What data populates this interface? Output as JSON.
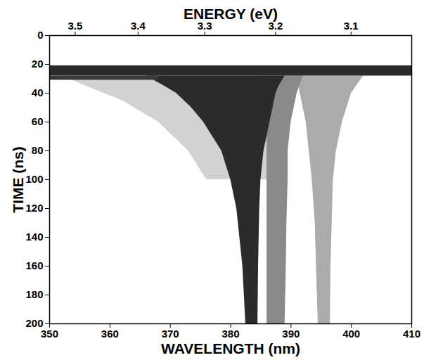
{
  "chart_data": {
    "type": "area",
    "xlabel": "WAVELENGTH (nm)",
    "ylabel": "TIME (ns)",
    "x2label": "ENERGY (eV)",
    "xlim": [
      350,
      410
    ],
    "xticks": [
      350,
      360,
      370,
      380,
      390,
      400,
      410
    ],
    "x2ticks": [
      {
        "value": 354.24,
        "label": "3.5"
      },
      {
        "value": 364.66,
        "label": "3.4"
      },
      {
        "value": 375.71,
        "label": "3.3"
      },
      {
        "value": 387.45,
        "label": "3.2"
      },
      {
        "value": 399.95,
        "label": "3.1"
      }
    ],
    "ylim": [
      0,
      200
    ],
    "yticks": [
      0,
      20,
      40,
      60,
      80,
      100,
      120,
      140,
      160,
      180,
      200
    ],
    "bands": [
      {
        "color": "#d2d2d2",
        "time": [
          28,
          35,
          45,
          60,
          80,
          100
        ],
        "x1": [
          352,
          356,
          362,
          368,
          373,
          376
        ],
        "x2": [
          390,
          390,
          390,
          390,
          388,
          386
        ]
      },
      {
        "color": "#ababab",
        "time": [
          28,
          40,
          60,
          80,
          100,
          130,
          160,
          200
        ],
        "x1": [
          391,
          391.5,
          392.5,
          393,
          393.5,
          394,
          394.2,
          394.5
        ],
        "x2": [
          402,
          400,
          398.5,
          397.5,
          397,
          396.8,
          396.6,
          396.5
        ]
      },
      {
        "color": "#8a8a8a",
        "time": [
          28,
          40,
          60,
          80,
          100,
          130,
          160,
          200
        ],
        "x1": [
          385,
          385.5,
          386,
          386,
          386,
          386,
          386,
          386
        ],
        "x2": [
          392,
          391,
          390,
          389.5,
          389.5,
          389.3,
          389.2,
          389
        ]
      },
      {
        "color": "#2b2b2b",
        "time": [
          28,
          35,
          40,
          50,
          60,
          70,
          80,
          100,
          120,
          140,
          160,
          200
        ],
        "x1": [
          366,
          369,
          371,
          373.5,
          375.5,
          377,
          378.5,
          380,
          381,
          381.5,
          382,
          382.5
        ],
        "x2": [
          389,
          388,
          387.5,
          387,
          386.5,
          386,
          385.5,
          385,
          384.8,
          384.7,
          384.6,
          384.5
        ]
      },
      {
        "color": "#2b2b2b",
        "time": [
          21,
          28
        ],
        "x1": [
          350,
          350
        ],
        "x2": [
          410,
          410
        ]
      },
      {
        "color": "#3a3a3a",
        "time": [
          28,
          31
        ],
        "x1": [
          350,
          350
        ],
        "x2": [
          368,
          368
        ]
      }
    ],
    "grid": false
  }
}
